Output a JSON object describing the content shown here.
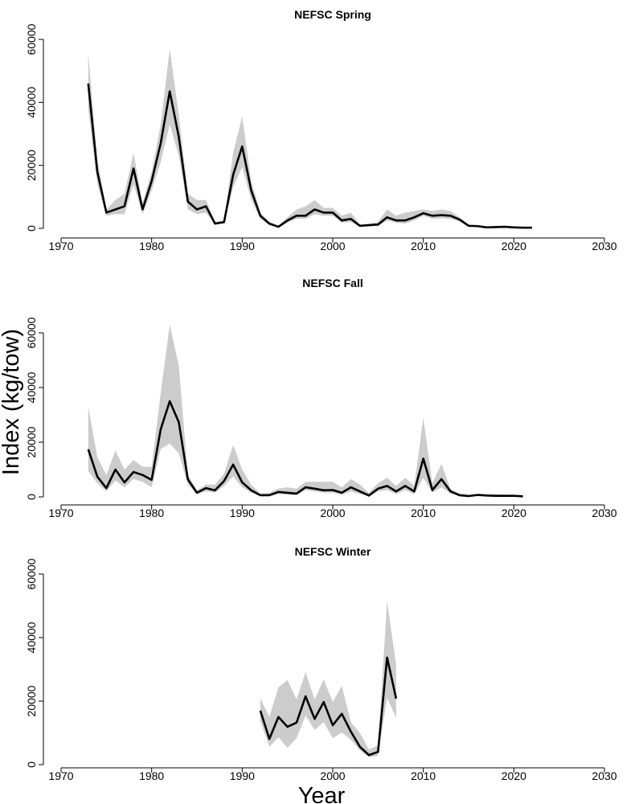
{
  "ylabel": "Index  (kg/tow)",
  "xlabel": "Year",
  "colors": {
    "line": "#000000",
    "band": "#cccccc"
  },
  "chart_data": [
    {
      "type": "line",
      "title": "NEFSC Spring",
      "xlim": [
        1970,
        2030
      ],
      "ylim": [
        0,
        60000
      ],
      "xticks": [
        "1970",
        "1980",
        "1990",
        "2000",
        "2010",
        "2020",
        "2030"
      ],
      "yticks": [
        "0",
        "20000",
        "40000",
        "60000"
      ],
      "grid": false,
      "x": [
        1973,
        1974,
        1975,
        1976,
        1977,
        1978,
        1979,
        1980,
        1981,
        1982,
        1983,
        1984,
        1985,
        1986,
        1987,
        1988,
        1989,
        1990,
        1991,
        1992,
        1993,
        1994,
        1995,
        1996,
        1997,
        1998,
        1999,
        2000,
        2001,
        2002,
        2003,
        2004,
        2005,
        2006,
        2007,
        2008,
        2009,
        2010,
        2011,
        2012,
        2013,
        2014,
        2015,
        2016,
        2017,
        2018,
        2019,
        2020,
        2021,
        2022
      ],
      "mean": [
        46000,
        18000,
        5000,
        6000,
        7000,
        19000,
        6000,
        15000,
        27000,
        43500,
        29000,
        8500,
        6000,
        7000,
        1500,
        2000,
        17000,
        26000,
        12000,
        4000,
        1500,
        500,
        2500,
        4000,
        4000,
        6000,
        5000,
        5000,
        2500,
        3000,
        800,
        1000,
        1200,
        3500,
        2500,
        2500,
        3500,
        4800,
        4000,
        4200,
        4000,
        2800,
        800,
        700,
        300,
        400,
        500,
        300,
        200,
        200
      ],
      "upper": [
        55500,
        22000,
        6000,
        9000,
        11000,
        24000,
        8000,
        18000,
        33000,
        57000,
        36000,
        11000,
        9000,
        9000,
        2000,
        2500,
        24000,
        35500,
        15000,
        5000,
        2000,
        800,
        3500,
        6000,
        7000,
        9000,
        6500,
        6500,
        4000,
        5000,
        1200,
        1500,
        2000,
        6000,
        4000,
        5000,
        5500,
        6000,
        5500,
        6000,
        5500,
        3500,
        1200,
        1000,
        500,
        700,
        800,
        500,
        400,
        400
      ],
      "lower": [
        38000,
        14000,
        4000,
        4500,
        4500,
        14000,
        4500,
        12000,
        21000,
        33000,
        23000,
        6000,
        4500,
        5000,
        1200,
        1500,
        13000,
        19500,
        9000,
        3000,
        1000,
        300,
        1800,
        3000,
        3000,
        4500,
        4000,
        4000,
        1800,
        2000,
        500,
        700,
        800,
        2500,
        1800,
        1500,
        2500,
        4000,
        3000,
        3200,
        3000,
        2200,
        500,
        500,
        200,
        300,
        300,
        200,
        100,
        100
      ]
    },
    {
      "type": "line",
      "title": "NEFSC Fall",
      "xlim": [
        1970,
        2030
      ],
      "ylim": [
        0,
        60000
      ],
      "xticks": [
        "1970",
        "1980",
        "1990",
        "2000",
        "2010",
        "2020",
        "2030"
      ],
      "yticks": [
        "0",
        "20000",
        "40000",
        "60000"
      ],
      "grid": false,
      "x": [
        1973,
        1974,
        1975,
        1976,
        1977,
        1978,
        1979,
        1980,
        1981,
        1982,
        1983,
        1984,
        1985,
        1986,
        1987,
        1988,
        1989,
        1990,
        1991,
        1992,
        1993,
        1994,
        1995,
        1996,
        1997,
        1998,
        1999,
        2000,
        2001,
        2002,
        2003,
        2004,
        2005,
        2006,
        2007,
        2008,
        2009,
        2010,
        2011,
        2012,
        2013,
        2014,
        2015,
        2016,
        2017,
        2018,
        2019,
        2020,
        2021
      ],
      "mean": [
        17400,
        7400,
        3200,
        10000,
        5300,
        9100,
        8000,
        6200,
        24700,
        35000,
        27300,
        6400,
        1500,
        3200,
        2400,
        5800,
        11800,
        5300,
        2400,
        600,
        600,
        1800,
        1500,
        1200,
        3500,
        3000,
        2400,
        2500,
        1500,
        3500,
        2000,
        500,
        3000,
        4000,
        2000,
        4000,
        2000,
        14000,
        2500,
        6500,
        2000,
        600,
        300,
        700,
        500,
        400,
        400,
        400,
        200
      ],
      "upper": [
        33000,
        14500,
        8000,
        17000,
        10000,
        13500,
        11000,
        11000,
        38000,
        63000,
        48000,
        8000,
        2500,
        4500,
        4500,
        8500,
        19000,
        10000,
        4500,
        1200,
        1500,
        3000,
        3500,
        3000,
        5500,
        5500,
        5500,
        5500,
        3500,
        6500,
        4500,
        1500,
        5000,
        7000,
        4000,
        7000,
        4000,
        29000,
        5000,
        12000,
        3000,
        1200,
        700,
        1200,
        1000,
        800,
        800,
        700,
        400
      ],
      "lower": [
        9500,
        5000,
        2000,
        6000,
        3500,
        6500,
        5500,
        3500,
        17500,
        19500,
        16000,
        4500,
        1000,
        2000,
        1500,
        4000,
        7500,
        3500,
        1500,
        300,
        300,
        1000,
        800,
        600,
        2500,
        2000,
        1500,
        1500,
        800,
        2000,
        1000,
        200,
        2000,
        2500,
        1000,
        2500,
        1000,
        7000,
        1500,
        3500,
        1200,
        300,
        100,
        300,
        200,
        200,
        200,
        200,
        100
      ]
    },
    {
      "type": "line",
      "title": "NEFSC Winter",
      "xlim": [
        1970,
        2030
      ],
      "ylim": [
        0,
        60000
      ],
      "xticks": [
        "1970",
        "1980",
        "1990",
        "2000",
        "2010",
        "2020",
        "2030"
      ],
      "yticks": [
        "0",
        "20000",
        "40000",
        "60000"
      ],
      "grid": false,
      "x": [
        1992,
        1993,
        1994,
        1995,
        1996,
        1997,
        1998,
        1999,
        2000,
        2001,
        2002,
        2003,
        2004,
        2005,
        2006,
        2007
      ],
      "mean": [
        17000,
        8100,
        15000,
        11900,
        13200,
        21500,
        14400,
        19700,
        12400,
        16000,
        10400,
        5600,
        3000,
        4000,
        33700,
        20800
      ],
      "upper": [
        20800,
        15000,
        24300,
        26600,
        20500,
        29100,
        20500,
        26800,
        19700,
        24800,
        13400,
        9900,
        4800,
        6000,
        51400,
        31400
      ],
      "lower": [
        13700,
        5600,
        8600,
        5300,
        8300,
        15400,
        10900,
        13400,
        8300,
        10100,
        7800,
        4500,
        2300,
        2800,
        21000,
        14700
      ]
    }
  ]
}
